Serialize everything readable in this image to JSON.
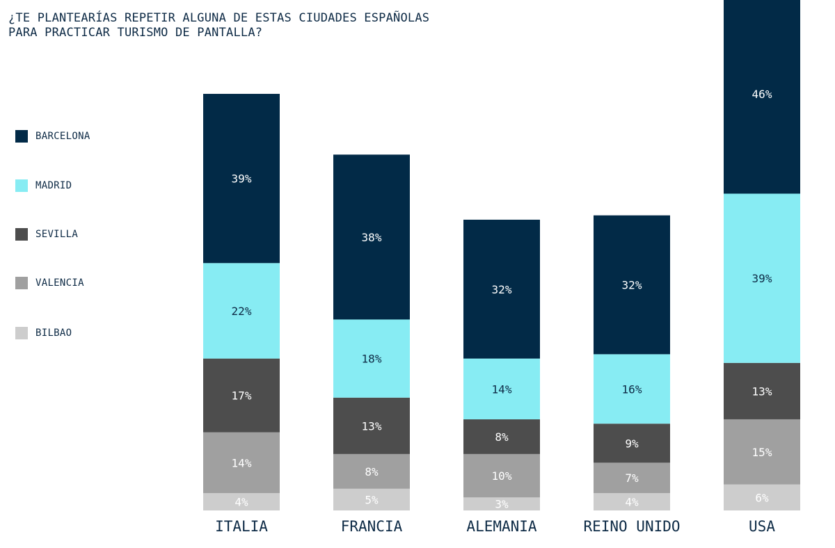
{
  "colors": {
    "Barcelona": "#022a47",
    "Madrid": "#87ecf3",
    "Sevilla": "#4d4d4d",
    "Valencia": "#a0a0a0",
    "Bilbao": "#cdcdcd",
    "text_dark": "#0d2a45",
    "text_light": "#ffffff"
  },
  "chart_data": {
    "type": "bar",
    "stacked": true,
    "title_lines": [
      "¿TE PLANTEARÍAS REPETIR ALGUNA DE ESTAS CIUDADES ESPAÑOLAS",
      "PARA PRACTICAR TURISMO DE PANTALLA?"
    ],
    "xlabel": "",
    "ylabel": "",
    "grid": false,
    "legend_position": "left",
    "categories": [
      "ITALIA",
      "FRANCIA",
      "ALEMANIA",
      "REINO UNIDO",
      "USA"
    ],
    "series": [
      {
        "name": "BARCELONA",
        "values": [
          39,
          38,
          32,
          32,
          46
        ],
        "labels": [
          "39%",
          "38%",
          "32%",
          "32%",
          "46%"
        ]
      },
      {
        "name": "MADRID",
        "values": [
          22,
          18,
          14,
          16,
          39
        ],
        "labels": [
          "22%",
          "18%",
          "14%",
          "16%",
          "39%"
        ]
      },
      {
        "name": "SEVILLA",
        "values": [
          17,
          13,
          8,
          9,
          13
        ],
        "labels": [
          "17%",
          "13%",
          "8%",
          "9%",
          "13%"
        ]
      },
      {
        "name": "VALENCIA",
        "values": [
          14,
          8,
          10,
          7,
          15
        ],
        "labels": [
          "14%",
          "8%",
          "10%",
          "7%",
          "15%"
        ]
      },
      {
        "name": "BILBAO",
        "values": [
          4,
          5,
          3,
          4,
          6
        ],
        "labels": [
          "4%",
          "5%",
          "3%",
          "4%",
          "6%"
        ]
      }
    ]
  }
}
